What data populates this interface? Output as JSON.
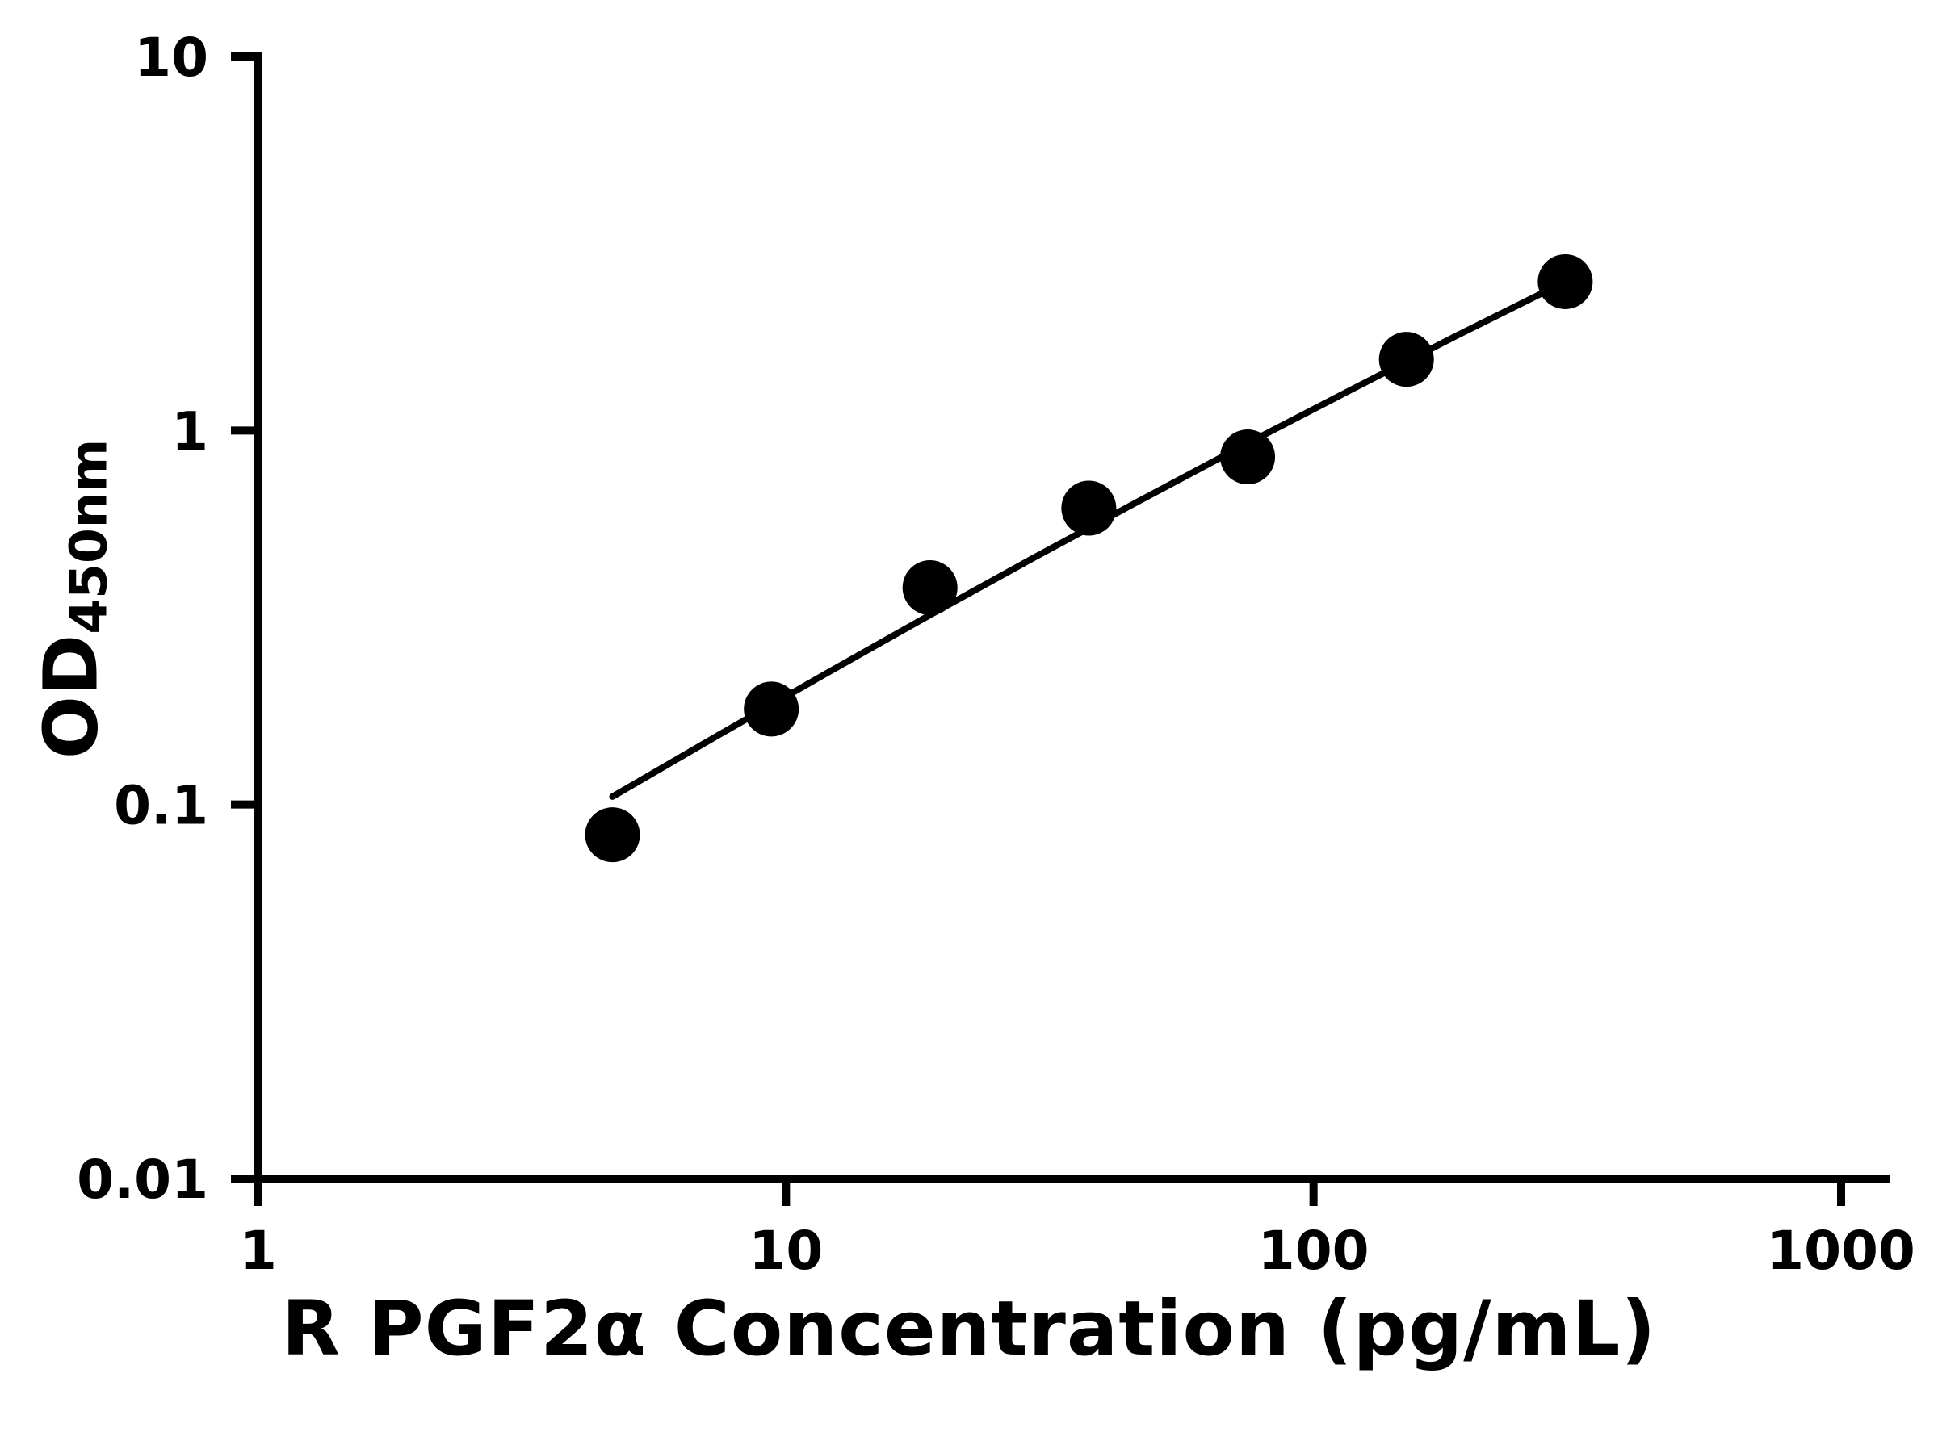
{
  "chart_data": {
    "type": "scatter",
    "title": "",
    "xlabel": "R PGF2α Concentration (pg/mL)",
    "ylabel_main": "OD",
    "ylabel_sub": "450nm",
    "x_scale": "log",
    "y_scale": "log",
    "xlim": [
      1,
      1000
    ],
    "ylim": [
      0.01,
      10
    ],
    "grid": false,
    "legend": false,
    "x_ticks": [
      {
        "v": 1,
        "label": "1"
      },
      {
        "v": 10,
        "label": "10"
      },
      {
        "v": 100,
        "label": "100"
      },
      {
        "v": 1000,
        "label": "1000"
      }
    ],
    "y_ticks": [
      {
        "v": 0.01,
        "label": "0.01"
      },
      {
        "v": 0.1,
        "label": "0.1"
      },
      {
        "v": 1,
        "label": "1"
      },
      {
        "v": 10,
        "label": "10"
      }
    ],
    "points": [
      {
        "x": 4.69,
        "y": 0.083
      },
      {
        "x": 9.38,
        "y": 0.18
      },
      {
        "x": 18.75,
        "y": 0.38
      },
      {
        "x": 37.5,
        "y": 0.62
      },
      {
        "x": 75,
        "y": 0.85
      },
      {
        "x": 150,
        "y": 1.55
      },
      {
        "x": 300,
        "y": 2.5
      }
    ],
    "trendline_points": [
      {
        "x": 4.69,
        "y": 0.105
      },
      {
        "x": 7.43,
        "y": 0.153
      },
      {
        "x": 11.78,
        "y": 0.222
      },
      {
        "x": 18.66,
        "y": 0.32
      },
      {
        "x": 29.58,
        "y": 0.458
      },
      {
        "x": 46.9,
        "y": 0.65
      },
      {
        "x": 74.3,
        "y": 0.918
      },
      {
        "x": 117.8,
        "y": 1.285
      },
      {
        "x": 186.6,
        "y": 1.792
      },
      {
        "x": 300,
        "y": 2.5
      }
    ]
  },
  "colors": {
    "axis": "#000000",
    "marker": "#000000",
    "line": "#000000",
    "background": "#ffffff"
  }
}
